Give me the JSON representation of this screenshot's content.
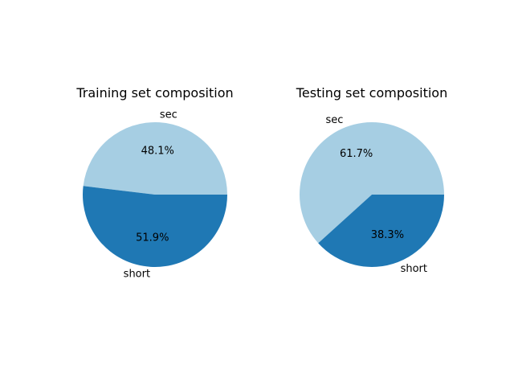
{
  "chart_data": [
    {
      "type": "pie",
      "title": "Training set composition",
      "labels": [
        "sec",
        "short"
      ],
      "values": [
        48.1,
        51.9
      ],
      "value_labels": [
        "48.1%",
        "51.9%"
      ],
      "colors": [
        "#a6cee3",
        "#1f78b4"
      ],
      "start_angle": 0,
      "direction": "counterclockwise"
    },
    {
      "type": "pie",
      "title": "Testing set composition",
      "labels": [
        "sec",
        "short"
      ],
      "values": [
        61.7,
        38.3
      ],
      "value_labels": [
        "61.7%",
        "38.3%"
      ],
      "colors": [
        "#a6cee3",
        "#1f78b4"
      ],
      "start_angle": 0,
      "direction": "counterclockwise"
    }
  ]
}
